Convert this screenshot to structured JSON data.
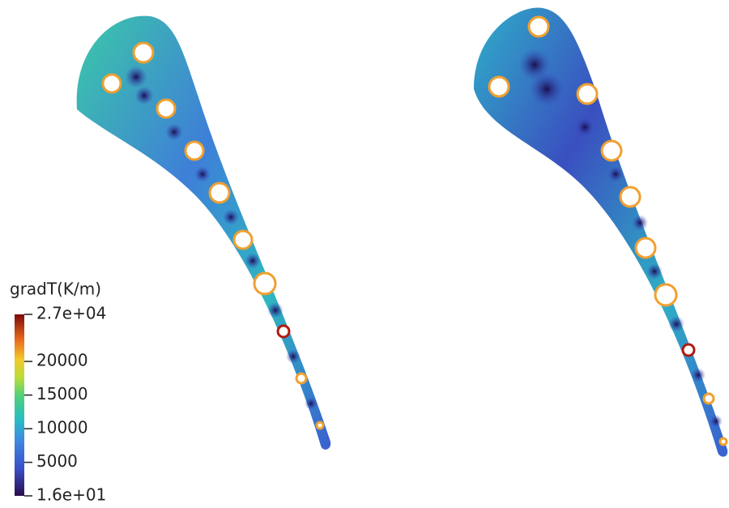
{
  "colorbar": {
    "title": "gradT(K/m)",
    "ticks": [
      {
        "value": 27000,
        "label": "2.7e+04"
      },
      20000,
      15000,
      10000,
      5000,
      {
        "value": 16,
        "label": "1.6e+01"
      }
    ]
  }
}
